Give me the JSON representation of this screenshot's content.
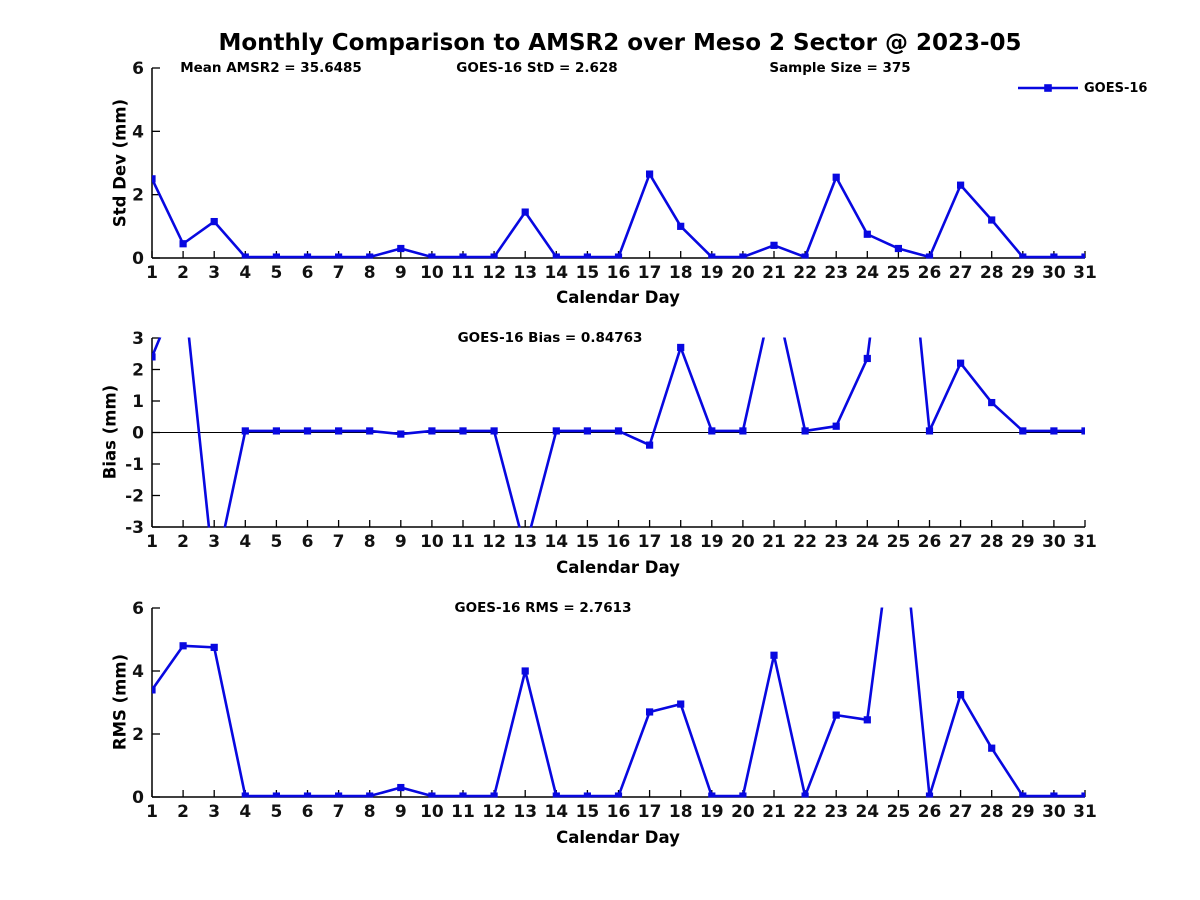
{
  "title": "Monthly Comparison to AMSR2 over Meso 2 Sector @ 2023-05",
  "legend": {
    "label": "GOES-16"
  },
  "colors": {
    "line": "#0808e0",
    "axis": "#000000",
    "text": "#111111"
  },
  "chart_data": [
    {
      "type": "line",
      "name": "std-dev-subplot",
      "ylabel": "Std Dev (mm)",
      "xlabel": "Calendar Day",
      "ylim": [
        0,
        6
      ],
      "yticks": [
        0,
        2,
        4,
        6
      ],
      "xlim": [
        1,
        31
      ],
      "x": [
        1,
        2,
        3,
        4,
        5,
        6,
        7,
        8,
        9,
        10,
        11,
        12,
        13,
        14,
        15,
        16,
        17,
        18,
        19,
        20,
        21,
        22,
        23,
        24,
        25,
        26,
        27,
        28,
        29,
        30,
        31
      ],
      "series": [
        {
          "name": "GOES-16",
          "marker": "square",
          "values": [
            2.5,
            0.45,
            1.15,
            0.03,
            0.03,
            0.03,
            0.03,
            0.03,
            0.3,
            0.03,
            0.03,
            0.03,
            1.45,
            0.03,
            0.03,
            0.03,
            2.65,
            1.0,
            0.03,
            0.03,
            0.4,
            0.03,
            2.55,
            0.75,
            0.3,
            0.03,
            2.3,
            1.2,
            0.03,
            0.03,
            0.03
          ]
        }
      ],
      "annotations": [
        {
          "text": "Mean AMSR2 = 35.6485"
        },
        {
          "text": "GOES-16 StD = 2.628"
        },
        {
          "text": "Sample Size = 375"
        }
      ],
      "grid": false,
      "legend_position": "top-right"
    },
    {
      "type": "line",
      "name": "bias-subplot",
      "ylabel": "Bias (mm)",
      "xlabel": "Calendar Day",
      "ylim": [
        -3,
        3
      ],
      "yticks": [
        3,
        2,
        1,
        0,
        -1,
        -2,
        -3
      ],
      "xlim": [
        1,
        31
      ],
      "zero_line": true,
      "x": [
        1,
        2,
        3,
        4,
        5,
        6,
        7,
        8,
        9,
        10,
        11,
        12,
        13,
        14,
        15,
        16,
        17,
        18,
        19,
        20,
        21,
        22,
        23,
        24,
        25,
        26,
        27,
        28,
        29,
        30,
        31
      ],
      "series": [
        {
          "name": "GOES-16",
          "marker": "square",
          "values": [
            2.4,
            4.8,
            -4.6,
            0.05,
            0.05,
            0.05,
            0.05,
            0.05,
            -0.05,
            0.05,
            0.05,
            0.05,
            -3.7,
            0.05,
            0.05,
            0.05,
            -0.4,
            2.7,
            0.05,
            0.05,
            4.5,
            0.05,
            0.2,
            2.35,
            10.0,
            0.05,
            2.2,
            0.95,
            0.05,
            0.05,
            0.05
          ]
        }
      ],
      "annotations": [
        {
          "text": "GOES-16 Bias = 0.84763"
        }
      ],
      "grid": false,
      "note": "values beyond +/-3 are clipped out of the axes (days 2, 3, 13, 21, 25)"
    },
    {
      "type": "line",
      "name": "rms-subplot",
      "ylabel": "RMS (mm)",
      "xlabel": "Calendar Day",
      "ylim": [
        0,
        6
      ],
      "yticks": [
        0,
        2,
        4,
        6
      ],
      "xlim": [
        1,
        31
      ],
      "x": [
        1,
        2,
        3,
        4,
        5,
        6,
        7,
        8,
        9,
        10,
        11,
        12,
        13,
        14,
        15,
        16,
        17,
        18,
        19,
        20,
        21,
        22,
        23,
        24,
        25,
        26,
        27,
        28,
        29,
        30,
        31
      ],
      "series": [
        {
          "name": "GOES-16",
          "marker": "square",
          "values": [
            3.4,
            4.8,
            4.75,
            0.03,
            0.03,
            0.03,
            0.03,
            0.03,
            0.3,
            0.03,
            0.03,
            0.03,
            4.0,
            0.03,
            0.03,
            0.03,
            2.7,
            2.95,
            0.03,
            0.03,
            4.5,
            0.03,
            2.6,
            2.45,
            10.0,
            0.03,
            3.25,
            1.55,
            0.03,
            0.03,
            0.03
          ]
        }
      ],
      "annotations": [
        {
          "text": "GOES-16 RMS = 2.7613"
        }
      ],
      "grid": false,
      "note": "value above 6 is clipped out of the axes (day 25)"
    }
  ]
}
